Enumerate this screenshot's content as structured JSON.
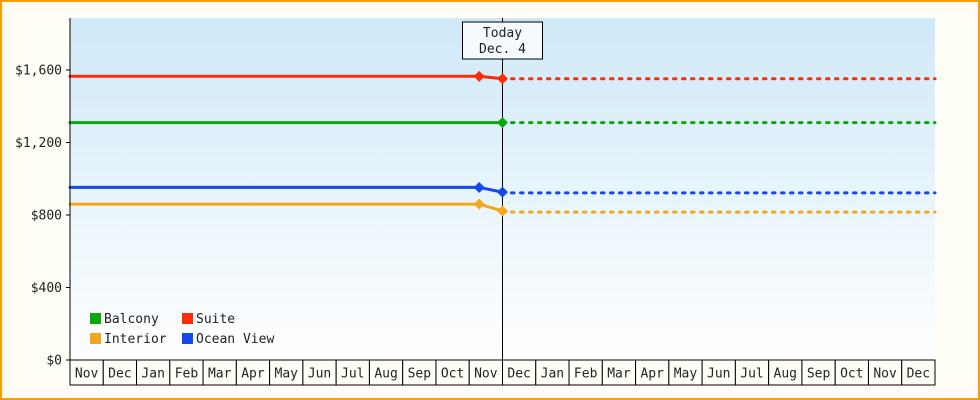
{
  "chart_data": {
    "type": "line",
    "title": "",
    "x_months": [
      "Nov",
      "Dec",
      "Jan",
      "Feb",
      "Mar",
      "Apr",
      "May",
      "Jun",
      "Jul",
      "Aug",
      "Sep",
      "Oct",
      "Nov",
      "Dec",
      "Jan",
      "Feb",
      "Mar",
      "Apr",
      "May",
      "Jun",
      "Jul",
      "Aug",
      "Sep",
      "Oct",
      "Nov",
      "Dec"
    ],
    "y_ticks": [
      {
        "value": 0,
        "label": "$0"
      },
      {
        "value": 400,
        "label": "$400"
      },
      {
        "value": 800,
        "label": "$800"
      },
      {
        "value": 1200,
        "label": "$1,200"
      },
      {
        "value": 1600,
        "label": "$1,600"
      }
    ],
    "ylim": [
      0,
      1880
    ],
    "grid": false,
    "today": {
      "line1": "Today",
      "line2": "Dec. 4",
      "month_position": 13
    },
    "series": [
      {
        "name": "Balcony",
        "color": "#0da60d",
        "solid": [
          [
            0,
            1310
          ],
          [
            13,
            1310
          ]
        ],
        "dashed": [
          [
            13,
            1310
          ],
          [
            26,
            1310
          ]
        ],
        "markers": [
          [
            13,
            1310
          ]
        ]
      },
      {
        "name": "Suite",
        "color": "#fb2c0c",
        "solid": [
          [
            0,
            1565
          ],
          [
            12.3,
            1565
          ],
          [
            13,
            1552
          ]
        ],
        "dashed": [
          [
            13,
            1552
          ],
          [
            26,
            1552
          ]
        ],
        "markers": [
          [
            12.3,
            1565
          ],
          [
            13,
            1552
          ]
        ]
      },
      {
        "name": "Interior",
        "color": "#f2a71c",
        "solid": [
          [
            0,
            860
          ],
          [
            12.3,
            860
          ],
          [
            13,
            822
          ]
        ],
        "dashed": [
          [
            13,
            816
          ],
          [
            26,
            816
          ]
        ],
        "markers": [
          [
            12.3,
            860
          ],
          [
            13,
            822
          ]
        ]
      },
      {
        "name": "Ocean View",
        "color": "#1647ec",
        "solid": [
          [
            0,
            952
          ],
          [
            12.3,
            952
          ],
          [
            13,
            926
          ]
        ],
        "dashed": [
          [
            13,
            922
          ],
          [
            26,
            922
          ]
        ],
        "markers": [
          [
            12.3,
            952
          ],
          [
            13,
            926
          ]
        ]
      }
    ],
    "legend": {
      "position": "bottom-left",
      "rows": [
        [
          "Balcony",
          "Suite"
        ],
        [
          "Interior",
          "Ocean View"
        ]
      ]
    },
    "colors": {
      "frame_border": "#ff9d00",
      "plot_top": "#cfe9f8",
      "plot_bottom": "#ffffff",
      "axis": "#000000",
      "text": "#222222",
      "page_bg": "#fffef6",
      "today_box_bg": "#f4fafd"
    }
  }
}
